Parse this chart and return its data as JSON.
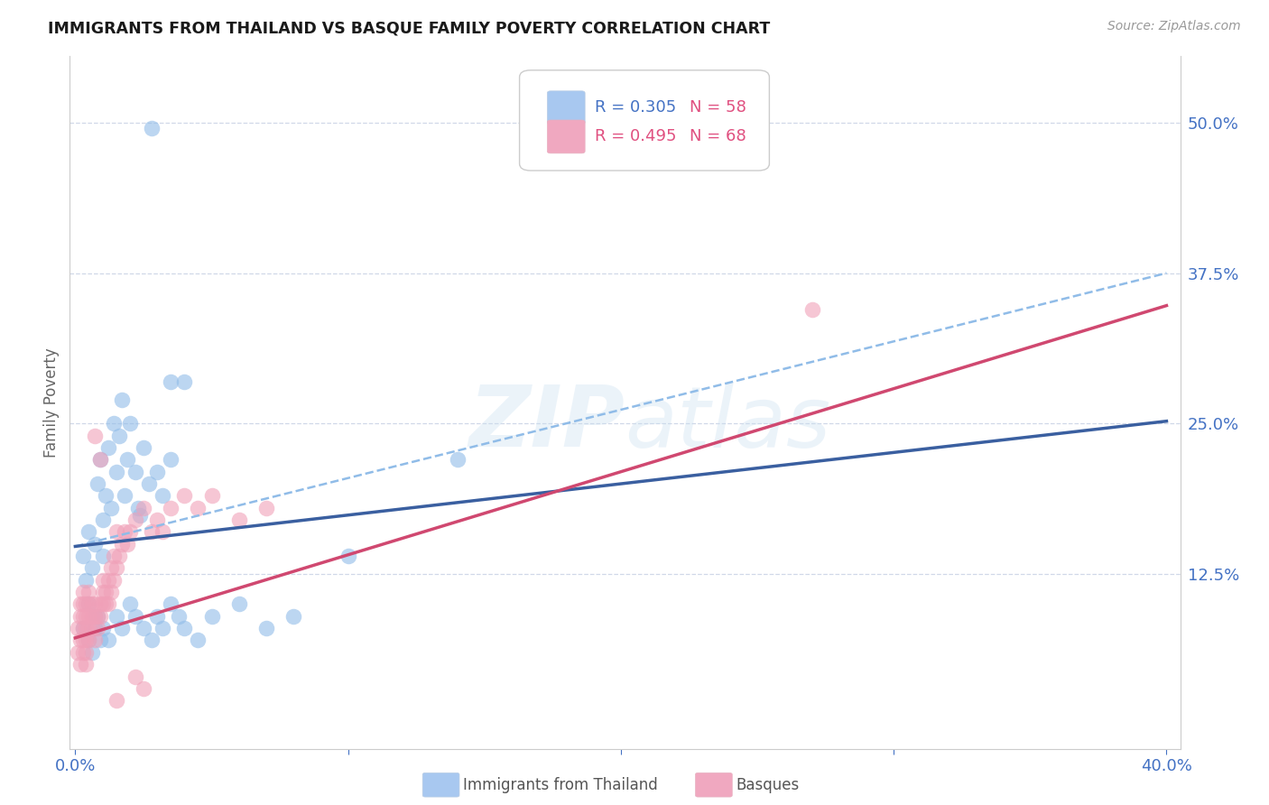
{
  "title": "IMMIGRANTS FROM THAILAND VS BASQUE FAMILY POVERTY CORRELATION CHART",
  "source": "Source: ZipAtlas.com",
  "ylabel": "Family Poverty",
  "ytick_labels": [
    "12.5%",
    "25.0%",
    "37.5%",
    "50.0%"
  ],
  "ytick_values": [
    0.125,
    0.25,
    0.375,
    0.5
  ],
  "xlim": [
    -0.002,
    0.405
  ],
  "ylim": [
    -0.02,
    0.555
  ],
  "watermark": "ZIPatlas",
  "blue_scatter_color": "#90bce8",
  "pink_scatter_color": "#f0a0b8",
  "blue_line_color": "#3a5fa0",
  "pink_line_color": "#d04870",
  "dashed_line_color": "#90bce8",
  "grid_color": "#d0d8e8",
  "blue_line_x0": 0.0,
  "blue_line_y0": 0.148,
  "blue_line_x1": 0.4,
  "blue_line_y1": 0.252,
  "pink_line_x0": 0.0,
  "pink_line_y0": 0.072,
  "pink_line_x1": 0.4,
  "pink_line_y1": 0.348,
  "dash_line_x0": 0.0,
  "dash_line_y0": 0.148,
  "dash_line_x1": 0.4,
  "dash_line_y1": 0.375,
  "legend_r1": "R = 0.305",
  "legend_n1": "N = 58",
  "legend_r2": "R = 0.495",
  "legend_n2": "N = 68",
  "legend_color_r": "#4472c4",
  "legend_color_n": "#e05080",
  "legend_blue_sq": "#a8c8f0",
  "legend_pink_sq": "#f0a8c0",
  "bottom_label1": "Immigrants from Thailand",
  "bottom_label2": "Basques"
}
